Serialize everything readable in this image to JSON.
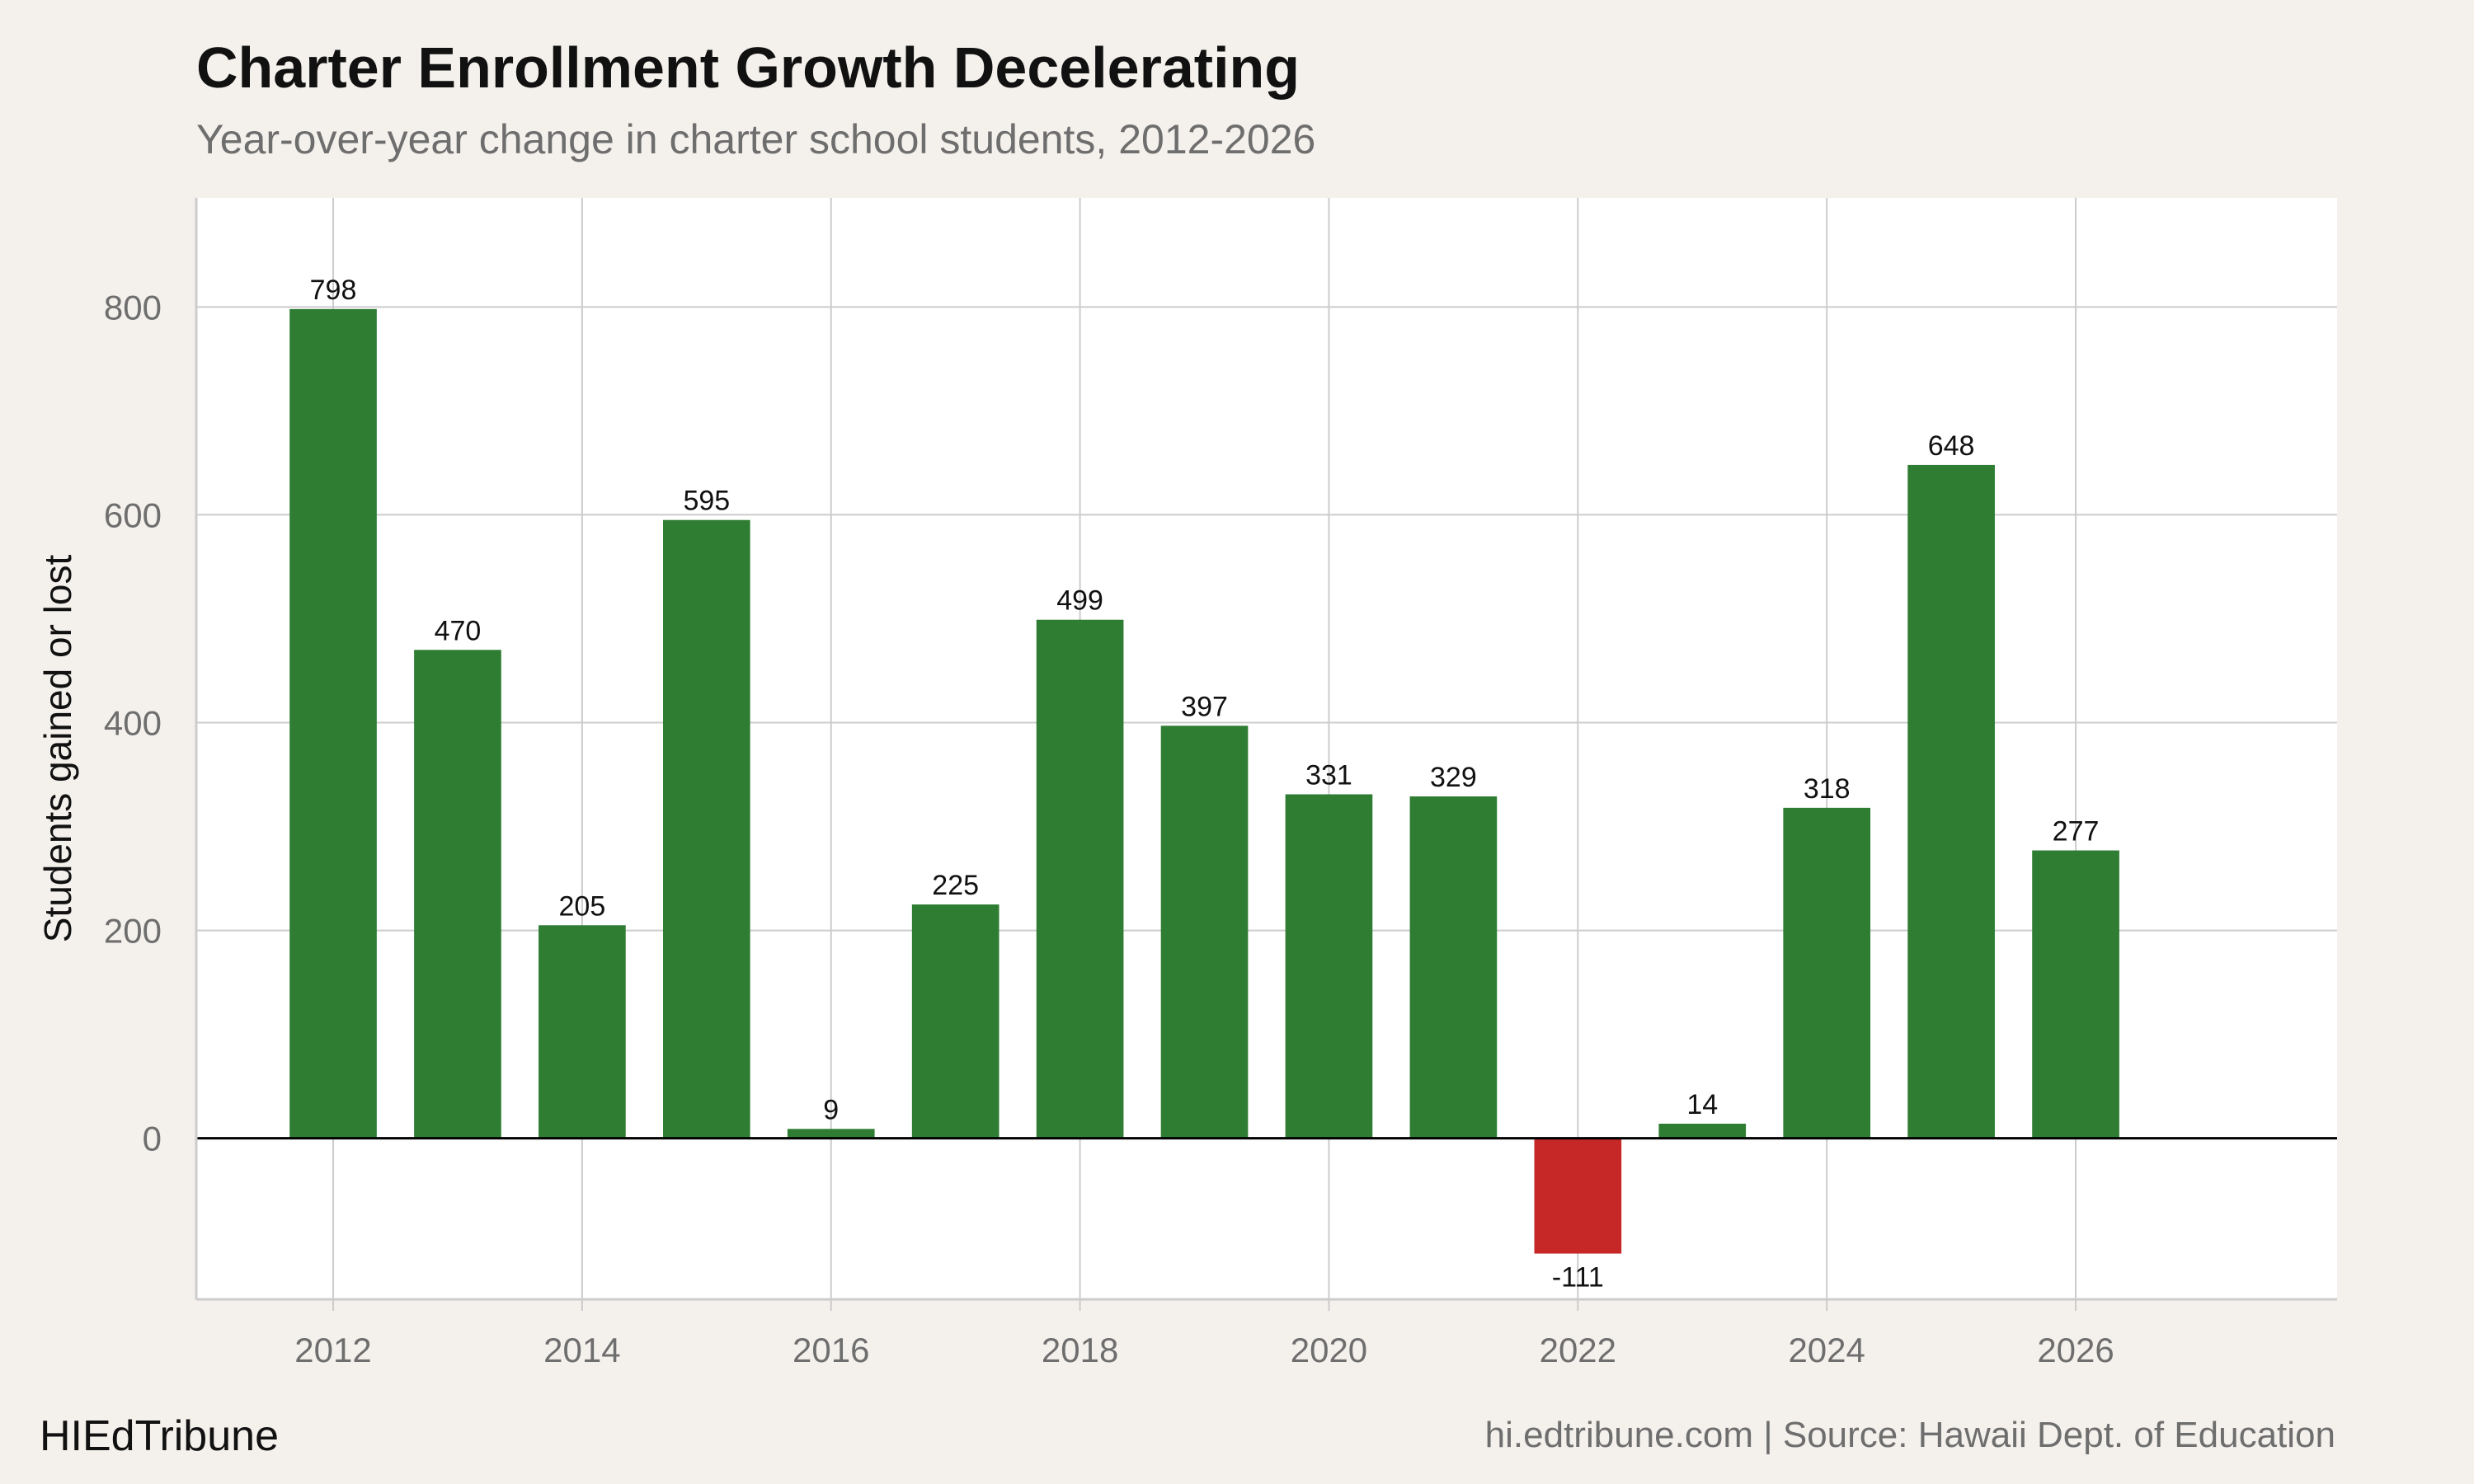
{
  "brand": "HIEdTribune",
  "source": "hi.edtribune.com | Source: Hawaii Dept. of Education",
  "chart_data": {
    "type": "bar",
    "title": "Charter Enrollment Growth Decelerating",
    "subtitle": "Year-over-year change in charter school students, 2012-2026",
    "xlabel": "",
    "ylabel": "Students gained or lost",
    "categories": [
      2012,
      2013,
      2014,
      2015,
      2016,
      2017,
      2018,
      2019,
      2020,
      2021,
      2022,
      2023,
      2024,
      2025,
      2026
    ],
    "values": [
      798,
      470,
      205,
      595,
      9,
      225,
      499,
      397,
      331,
      329,
      -111,
      14,
      318,
      648,
      277
    ],
    "xlim": [
      2010.9,
      2028.1
    ],
    "ylim": [
      -155,
      905
    ],
    "x_ticks": [
      2012,
      2014,
      2016,
      2018,
      2020,
      2022,
      2024,
      2026
    ],
    "y_ticks": [
      0,
      200,
      400,
      600,
      800
    ],
    "grid": true,
    "legend": "none",
    "colors": {
      "positive": "#2e7d32",
      "negative": "#c62828",
      "panel": "#ffffff",
      "grid": "#cccccc",
      "zero_line": "#000000"
    }
  }
}
